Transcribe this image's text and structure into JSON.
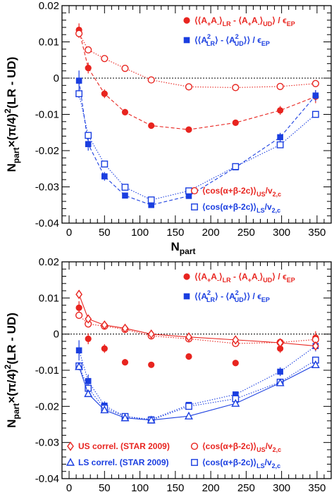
{
  "colors": {
    "red": "#e8241f",
    "blue": "#1a3ee0",
    "axis": "#000000"
  },
  "axes": {
    "ylabel": "N_part×(π/4)²(LR - UD)",
    "xlabel_main": "N",
    "xlabel_sub": "part",
    "xlim": [
      -10,
      370
    ],
    "ylim": [
      -0.04,
      0.02
    ],
    "xticks": [
      0,
      50,
      100,
      150,
      200,
      250,
      300,
      350
    ],
    "xtick_labels": [
      "0",
      "50",
      "100",
      "150",
      "200",
      "250",
      "300",
      "350"
    ],
    "yticks": [
      -0.04,
      -0.03,
      -0.02,
      -0.01,
      0,
      0.01,
      0.02
    ],
    "ytick_labels": [
      "-0.04",
      "-0.03",
      "-0.02",
      "-0.01",
      "0",
      "0.01",
      "0.02"
    ]
  },
  "legend_text": {
    "red_filled": "⟨⟨A₊A₋⟩LR - ⟨A₊A₋⟩UD⟩ / ϵEP",
    "blue_filled": "⟨⟨A²LR⟩ - ⟨A²UD⟩⟩ / ϵEP",
    "red_open": "⟨cos(α+β-2c)⟩US/v2,c",
    "blue_open": "⟨cos(α+β-2c)⟩LS/v2,c",
    "us_star": "US correl. (STAR 2009)",
    "ls_star": "LS correl. (STAR 2009)"
  },
  "chart_data": [
    {
      "type": "scatter",
      "panel": "top",
      "title": "",
      "xlabel": "Npart",
      "ylabel": "Npart×(π/4)²(LR - UD)",
      "xlim": [
        -10,
        370
      ],
      "ylim": [
        -0.04,
        0.02
      ],
      "grid": false,
      "legend_placement": "top-right and bottom-right",
      "zero_line": true,
      "series": [
        {
          "name": "⟨⟨A₊A₋⟩LR - ⟨A₊A₋⟩UD⟩ / ϵEP",
          "color": "#e8241f",
          "marker": "circle-filled",
          "line": "dashed",
          "x": [
            14,
            27,
            50,
            79,
            116,
            169,
            235,
            298,
            348
          ],
          "y": [
            0.0133,
            0.0028,
            -0.0043,
            -0.0094,
            -0.0131,
            -0.0142,
            -0.0123,
            -0.0089,
            -0.0051
          ],
          "err": [
            0.0018,
            0.0015,
            0.0012,
            0.0009,
            0.0008,
            0.0006,
            0.0006,
            0.0012,
            0.0018
          ]
        },
        {
          "name": "⟨⟨A²LR⟩ - ⟨A²UD⟩⟩ / ϵEP",
          "color": "#1a3ee0",
          "marker": "square-filled",
          "line": "dashed",
          "x": [
            14,
            27,
            50,
            79,
            116,
            169,
            235,
            298,
            348
          ],
          "y": [
            -0.0007,
            -0.0182,
            -0.0271,
            -0.0324,
            -0.035,
            -0.0325,
            -0.0246,
            -0.0163,
            -0.0048
          ],
          "err": [
            0.0028,
            0.0018,
            0.0012,
            0.0008,
            0.0007,
            0.0006,
            0.0007,
            0.0012,
            0.0015
          ]
        },
        {
          "name": "⟨cos(α+β-2c)⟩US/v2,c",
          "color": "#e8241f",
          "marker": "circle-open",
          "line": "dotted",
          "x": [
            14,
            27,
            50,
            79,
            116,
            169,
            235,
            298,
            348
          ],
          "y": [
            0.0123,
            0.0078,
            0.0054,
            0.0027,
            -0.0005,
            -0.0024,
            -0.0026,
            -0.0023,
            -0.0015
          ],
          "err": [
            0.0012,
            0.0008,
            0.0005,
            0.0004,
            0.0003,
            0.0003,
            0.0003,
            0.0004,
            0.0006
          ]
        },
        {
          "name": "⟨cos(α+β-2c)⟩LS/v2,c",
          "color": "#1a3ee0",
          "marker": "square-open",
          "line": "dotted",
          "x": [
            14,
            27,
            50,
            79,
            116,
            169,
            235,
            298,
            348
          ],
          "y": [
            -0.0043,
            -0.0158,
            -0.0237,
            -0.0301,
            -0.0336,
            -0.0311,
            -0.0244,
            -0.0184,
            -0.01
          ],
          "err": [
            0.0012,
            0.0007,
            0.0005,
            0.0004,
            0.0003,
            0.0003,
            0.0004,
            0.0005,
            0.0007
          ]
        }
      ]
    },
    {
      "type": "scatter",
      "panel": "bottom",
      "title": "",
      "xlabel": "Npart",
      "ylabel": "Npart×(π/4)²(LR - UD)",
      "xlim": [
        -10,
        370
      ],
      "ylim": [
        -0.04,
        0.02
      ],
      "grid": false,
      "legend_placement": "top-right and bottom",
      "zero_line": true,
      "series": [
        {
          "name": "⟨⟨A₊A₋⟩LR - ⟨A₊A₋⟩UD⟩ / ϵEP",
          "color": "#e8241f",
          "marker": "circle-filled",
          "line": "none",
          "x": [
            14,
            27,
            50,
            79,
            116,
            169,
            235,
            298,
            348
          ],
          "y": [
            0.0073,
            -0.0013,
            -0.004,
            -0.0078,
            -0.0085,
            -0.0062,
            -0.008,
            -0.004,
            -0.001
          ],
          "err": [
            0.0018,
            0.0015,
            0.0012,
            0.0009,
            0.0008,
            0.0006,
            0.0006,
            0.0012,
            0.0018
          ]
        },
        {
          "name": "⟨⟨A²LR⟩ - ⟨A²UD⟩⟩ / ϵEP",
          "color": "#1a3ee0",
          "marker": "square-filled",
          "line": "dotted",
          "x": [
            14,
            27,
            50,
            79,
            116,
            169,
            235,
            298,
            348
          ],
          "y": [
            -0.0045,
            -0.013,
            -0.0198,
            -0.0228,
            -0.0236,
            -0.0196,
            -0.0167,
            -0.0104,
            -0.0033
          ],
          "err": [
            0.0028,
            0.0018,
            0.0012,
            0.0008,
            0.0007,
            0.0006,
            0.0007,
            0.0012,
            0.0015
          ]
        },
        {
          "name": "⟨cos(α+β-2c)⟩US/v2,c",
          "color": "#e8241f",
          "marker": "circle-open",
          "line": "dotted",
          "x": [
            14,
            27,
            50,
            79,
            116,
            169,
            235,
            298,
            348
          ],
          "y": [
            0.0052,
            0.0028,
            0.0022,
            0.0013,
            -0.0005,
            -0.0013,
            -0.0026,
            -0.0023,
            -0.0015
          ],
          "err": [
            0.001,
            0.0007,
            0.0005,
            0.0004,
            0.0003,
            0.0003,
            0.0003,
            0.0004,
            0.0005
          ]
        },
        {
          "name": "⟨cos(α+β-2c)⟩LS/v2,c",
          "color": "#1a3ee0",
          "marker": "square-open",
          "line": "dotted",
          "x": [
            14,
            27,
            50,
            79,
            116,
            169,
            235,
            298,
            348
          ],
          "y": [
            -0.0088,
            -0.015,
            -0.0205,
            -0.0228,
            -0.0238,
            -0.02,
            -0.0179,
            -0.0133,
            -0.0072
          ],
          "err": [
            0.001,
            0.0007,
            0.0005,
            0.0004,
            0.0003,
            0.0003,
            0.0004,
            0.0005,
            0.0006
          ]
        },
        {
          "name": "US correl. (STAR 2009)",
          "color": "#e8241f",
          "marker": "diamond-open",
          "line": "solid",
          "x": [
            14,
            27,
            50,
            79,
            116,
            169,
            235,
            298,
            348
          ],
          "y": [
            0.011,
            0.0042,
            0.0025,
            0.0016,
            0.0,
            -0.0008,
            -0.0016,
            -0.0024,
            -0.0033
          ],
          "err": [
            0.0012,
            0.0008,
            0.0005,
            0.0004,
            0.0003,
            0.0003,
            0.0003,
            0.0004,
            0.0005
          ]
        },
        {
          "name": "LS correl. (STAR 2009)",
          "color": "#1a3ee0",
          "marker": "triangle-open",
          "line": "solid",
          "x": [
            14,
            27,
            50,
            79,
            116,
            169,
            235,
            298,
            348
          ],
          "y": [
            -0.009,
            -0.0165,
            -0.021,
            -0.0232,
            -0.0238,
            -0.0227,
            -0.0192,
            -0.0135,
            -0.0085
          ],
          "err": [
            0.001,
            0.0007,
            0.0005,
            0.0004,
            0.0003,
            0.0003,
            0.0004,
            0.0005,
            0.0006
          ]
        }
      ]
    }
  ]
}
